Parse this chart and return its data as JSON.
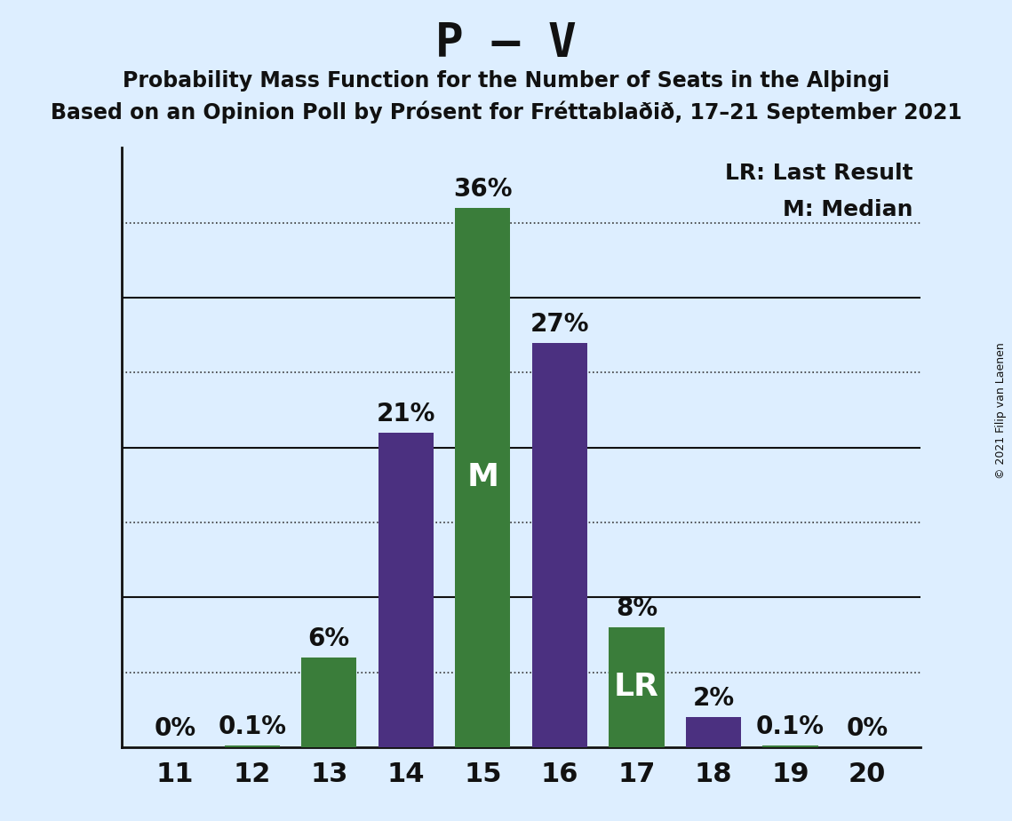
{
  "title": "P – V",
  "subtitle1": "Probability Mass Function for the Number of Seats in the Alþingi",
  "subtitle2": "Based on an Opinion Poll by Prósent for Fréttablaðið, 17–21 September 2021",
  "copyright_text": "© 2021 Filip van Laenen",
  "seats": [
    11,
    12,
    13,
    14,
    15,
    16,
    17,
    18,
    19,
    20
  ],
  "probabilities": [
    0.0,
    0.1,
    6.0,
    21.0,
    36.0,
    27.0,
    8.0,
    2.0,
    0.1,
    0.0
  ],
  "bar_colors": [
    "#3a7d3a",
    "#3a7d3a",
    "#3a7d3a",
    "#4b3080",
    "#3a7d3a",
    "#4b3080",
    "#3a7d3a",
    "#4b3080",
    "#3a7d3a",
    "#3a7d3a"
  ],
  "label_inside": {
    "15": "M",
    "17": "LR"
  },
  "label_colors_inside": {
    "15": "#ffffff",
    "17": "#ffffff"
  },
  "annotations": {
    "11": "0%",
    "12": "0.1%",
    "13": "6%",
    "14": "21%",
    "15": "36%",
    "16": "27%",
    "17": "8%",
    "18": "2%",
    "19": "0.1%",
    "20": "0%"
  },
  "solid_gridlines": [
    10,
    20,
    30
  ],
  "dotted_gridlines": [
    5,
    15,
    25,
    35
  ],
  "ylim": [
    0,
    40
  ],
  "background_color": "#ddeeff",
  "solid_grid_color": "#111111",
  "dotted_grid_color": "#333333",
  "legend_text_lr": "LR: Last Result",
  "legend_text_m": "M: Median",
  "title_fontsize": 38,
  "subtitle_fontsize": 17,
  "ytick_fontsize": 22,
  "xtick_fontsize": 22,
  "bar_label_fontsize": 20,
  "inside_label_fontsize": 26,
  "legend_fontsize": 18,
  "copyright_fontsize": 9
}
